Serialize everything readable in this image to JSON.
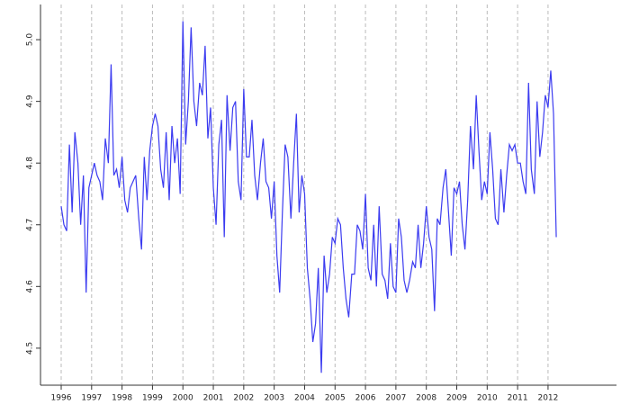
{
  "chart_data": {
    "type": "line",
    "color": "#3b3bf0",
    "grid": true,
    "x": [
      1996.0,
      1996.09,
      1996.18,
      1996.27,
      1996.36,
      1996.45,
      1996.55,
      1996.64,
      1996.73,
      1996.82,
      1996.91,
      1997.0,
      1997.09,
      1997.18,
      1997.27,
      1997.36,
      1997.45,
      1997.55,
      1997.64,
      1997.73,
      1997.82,
      1997.91,
      1998.0,
      1998.09,
      1998.18,
      1998.27,
      1998.36,
      1998.45,
      1998.55,
      1998.64,
      1998.73,
      1998.82,
      1998.91,
      1999.0,
      1999.09,
      1999.18,
      1999.27,
      1999.36,
      1999.45,
      1999.55,
      1999.64,
      1999.73,
      1999.82,
      1999.91,
      2000.0,
      2000.09,
      2000.18,
      2000.27,
      2000.36,
      2000.45,
      2000.55,
      2000.64,
      2000.73,
      2000.82,
      2000.91,
      2001.0,
      2001.09,
      2001.18,
      2001.27,
      2001.36,
      2001.45,
      2001.55,
      2001.64,
      2001.73,
      2001.82,
      2001.91,
      2002.0,
      2002.09,
      2002.18,
      2002.27,
      2002.36,
      2002.45,
      2002.55,
      2002.64,
      2002.73,
      2002.82,
      2002.91,
      2003.0,
      2003.09,
      2003.18,
      2003.27,
      2003.36,
      2003.45,
      2003.55,
      2003.64,
      2003.73,
      2003.82,
      2003.91,
      2004.0,
      2004.09,
      2004.18,
      2004.27,
      2004.36,
      2004.45,
      2004.55,
      2004.64,
      2004.73,
      2004.82,
      2004.91,
      2005.0,
      2005.09,
      2005.18,
      2005.27,
      2005.36,
      2005.45,
      2005.55,
      2005.64,
      2005.73,
      2005.82,
      2005.91,
      2006.0,
      2006.09,
      2006.18,
      2006.27,
      2006.36,
      2006.45,
      2006.55,
      2006.64,
      2006.73,
      2006.82,
      2006.91,
      2007.0,
      2007.09,
      2007.18,
      2007.27,
      2007.36,
      2007.45,
      2007.55,
      2007.64,
      2007.73,
      2007.82,
      2007.91,
      2008.0,
      2008.09,
      2008.18,
      2008.27,
      2008.36,
      2008.45,
      2008.55,
      2008.64,
      2008.73,
      2008.82,
      2008.91,
      2009.0,
      2009.09,
      2009.18,
      2009.27,
      2009.36,
      2009.45,
      2009.55,
      2009.64,
      2009.73,
      2009.82,
      2009.91,
      2010.0,
      2010.09,
      2010.18,
      2010.27,
      2010.36,
      2010.45,
      2010.55,
      2010.64,
      2010.73,
      2010.82,
      2010.91,
      2011.0,
      2011.09,
      2011.18,
      2011.27,
      2011.36,
      2011.45,
      2011.55,
      2011.64,
      2011.73,
      2011.82,
      2011.91,
      2012.0,
      2012.09,
      2012.18,
      2012.27
    ],
    "values": [
      4.73,
      4.7,
      4.69,
      4.83,
      4.72,
      4.85,
      4.8,
      4.7,
      4.78,
      4.59,
      4.76,
      4.78,
      4.8,
      4.78,
      4.77,
      4.74,
      4.84,
      4.8,
      4.96,
      4.78,
      4.79,
      4.76,
      4.81,
      4.74,
      4.72,
      4.76,
      4.77,
      4.78,
      4.71,
      4.66,
      4.81,
      4.74,
      4.82,
      4.86,
      4.88,
      4.86,
      4.79,
      4.76,
      4.85,
      4.74,
      4.86,
      4.8,
      4.84,
      4.75,
      5.03,
      4.83,
      4.9,
      5.02,
      4.9,
      4.86,
      4.93,
      4.91,
      4.99,
      4.84,
      4.89,
      4.76,
      4.7,
      4.83,
      4.87,
      4.68,
      4.91,
      4.82,
      4.89,
      4.9,
      4.77,
      4.74,
      4.92,
      4.81,
      4.81,
      4.87,
      4.78,
      4.74,
      4.8,
      4.84,
      4.77,
      4.76,
      4.71,
      4.77,
      4.65,
      4.59,
      4.72,
      4.83,
      4.81,
      4.71,
      4.8,
      4.88,
      4.72,
      4.78,
      4.75,
      4.63,
      4.58,
      4.51,
      4.54,
      4.63,
      4.46,
      4.65,
      4.59,
      4.62,
      4.68,
      4.67,
      4.71,
      4.7,
      4.63,
      4.58,
      4.55,
      4.62,
      4.62,
      4.7,
      4.69,
      4.66,
      4.75,
      4.63,
      4.61,
      4.7,
      4.6,
      4.73,
      4.62,
      4.61,
      4.58,
      4.67,
      4.6,
      4.59,
      4.71,
      4.68,
      4.61,
      4.59,
      4.61,
      4.64,
      4.63,
      4.7,
      4.63,
      4.67,
      4.73,
      4.68,
      4.66,
      4.56,
      4.71,
      4.7,
      4.76,
      4.79,
      4.72,
      4.65,
      4.76,
      4.75,
      4.77,
      4.7,
      4.66,
      4.74,
      4.86,
      4.79,
      4.91,
      4.82,
      4.74,
      4.77,
      4.75,
      4.85,
      4.79,
      4.71,
      4.7,
      4.79,
      4.72,
      4.78,
      4.83,
      4.82,
      4.83,
      4.8,
      4.8,
      4.77,
      4.75,
      4.93,
      4.79,
      4.75,
      4.9,
      4.81,
      4.85,
      4.91,
      4.89,
      4.95,
      4.88,
      4.68
    ],
    "xlim": [
      1995.32,
      2014.25
    ],
    "xticks": [
      1996,
      1997,
      1998,
      1999,
      2000,
      2001,
      2002,
      2003,
      2004,
      2005,
      2006,
      2007,
      2008,
      2009,
      2010,
      2011,
      2012
    ],
    "ylim": [
      4.44,
      5.057
    ],
    "yticks": [
      4.5,
      4.6,
      4.7,
      4.8,
      4.9,
      {
        "value": 5.0,
        "label": "5.0"
      }
    ]
  }
}
